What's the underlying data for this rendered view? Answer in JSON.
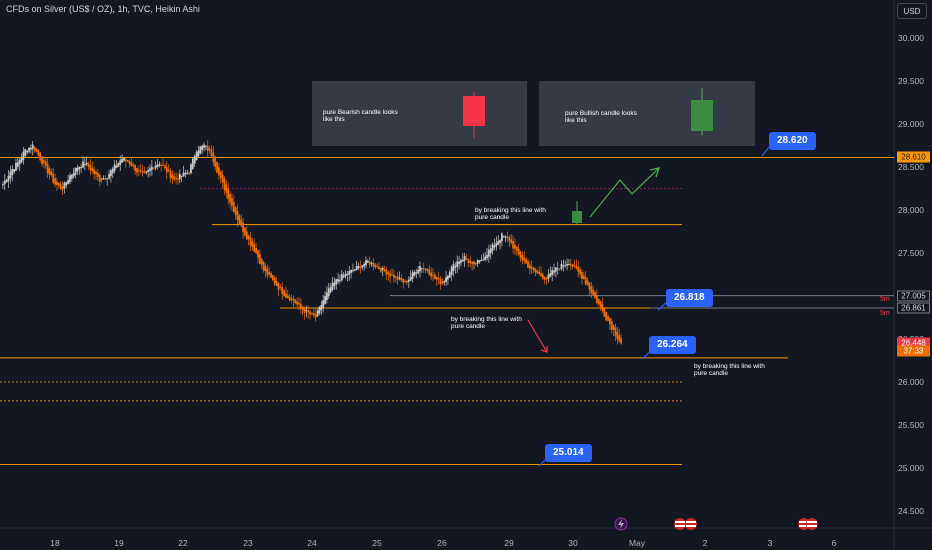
{
  "header": {
    "title": "CFDs on Silver (US$ / OZ), 1h, TVC, Heikin Ashi"
  },
  "currency_button": {
    "label": "USD"
  },
  "y_axis": {
    "ticks": [
      "30.000",
      "29.500",
      "29.000",
      "28.500",
      "28.000",
      "27.500",
      "27.000",
      "26.500",
      "26.000",
      "25.500",
      "25.000",
      "24.500"
    ]
  },
  "x_axis": {
    "ticks": [
      "18",
      "19",
      "22",
      "23",
      "24",
      "25",
      "26",
      "29",
      "30",
      "May",
      "2",
      "3",
      "6"
    ]
  },
  "price_tags": {
    "level_28610": "28.610",
    "level_27005": "27.005",
    "level_26861": "26.861",
    "current": "26.448",
    "countdown": "37:33",
    "tf_5m_a": "5m",
    "tf_5m_b": "5m"
  },
  "callouts": {
    "c1": "28.620",
    "c2": "26.818",
    "c3": "26.264",
    "c4": "25.014"
  },
  "notes": {
    "bearish_legend": "pure Bearish candle looks like this",
    "bullish_legend": "pure Bullish candle looks like this",
    "break_up": "by breaking this line with pure candle",
    "break_mid": "by breaking this line with pure candle",
    "break_down": "by breaking this line with pure candle"
  },
  "colors": {
    "background": "#131722",
    "bull": "#c8c8c8",
    "bear": "#ef6c00",
    "level": "#ff9800",
    "callout": "#2962ff",
    "bearish_example": "#f23645",
    "bullish_example": "#4caf50"
  },
  "chart_data": {
    "type": "candlestick",
    "title": "CFDs on Silver (US$ / OZ), 1h, TVC, Heikin Ashi",
    "ylim": [
      24.4,
      30.2
    ],
    "y_ticks": [
      30.0,
      29.5,
      29.0,
      28.5,
      28.0,
      27.5,
      27.0,
      26.5,
      26.0,
      25.5,
      25.0,
      24.5
    ],
    "x_tick_labels": [
      "18",
      "19",
      "22",
      "23",
      "24",
      "25",
      "26",
      "29",
      "30",
      "May",
      "2",
      "3",
      "6"
    ],
    "price_path": [
      [
        28.3,
        28.45,
        28.55,
        28.7,
        28.75,
        28.6,
        28.45,
        28.3,
        28.25,
        28.4,
        28.5,
        28.55
      ],
      [
        28.45,
        28.35,
        28.4,
        28.5,
        28.6,
        28.55,
        28.45,
        28.4,
        28.5,
        28.55,
        28.45,
        28.35,
        28.4
      ],
      [
        28.45,
        28.7,
        28.75,
        28.65,
        28.4,
        28.2,
        28.0,
        27.8,
        27.65,
        27.5
      ],
      [
        27.3,
        27.2,
        27.1,
        27.0,
        26.95,
        26.85,
        26.8,
        26.75
      ],
      [
        26.95,
        27.1,
        27.2,
        27.25,
        27.3,
        27.35,
        27.4,
        27.35,
        27.3
      ],
      [
        27.25,
        27.2,
        27.15,
        27.25,
        27.35,
        27.3,
        27.2,
        27.15
      ],
      [
        27.3,
        27.4,
        27.45,
        27.35,
        27.4,
        27.5,
        27.6,
        27.7,
        27.65
      ],
      [
        27.5,
        27.4,
        27.3,
        27.25,
        27.2,
        27.3,
        27.35,
        27.4
      ],
      [
        27.3,
        27.2,
        27.05,
        26.9,
        26.75,
        26.6,
        26.45
      ]
    ],
    "horizontal_levels": [
      28.61,
      27.83,
      26.86,
      26.28,
      25.04
    ],
    "dashed_levels": [
      28.25,
      26.0,
      25.78
    ],
    "gray_levels": [
      27.005
    ],
    "price_labels": {
      "resistance": 28.61,
      "current": 26.448
    }
  }
}
